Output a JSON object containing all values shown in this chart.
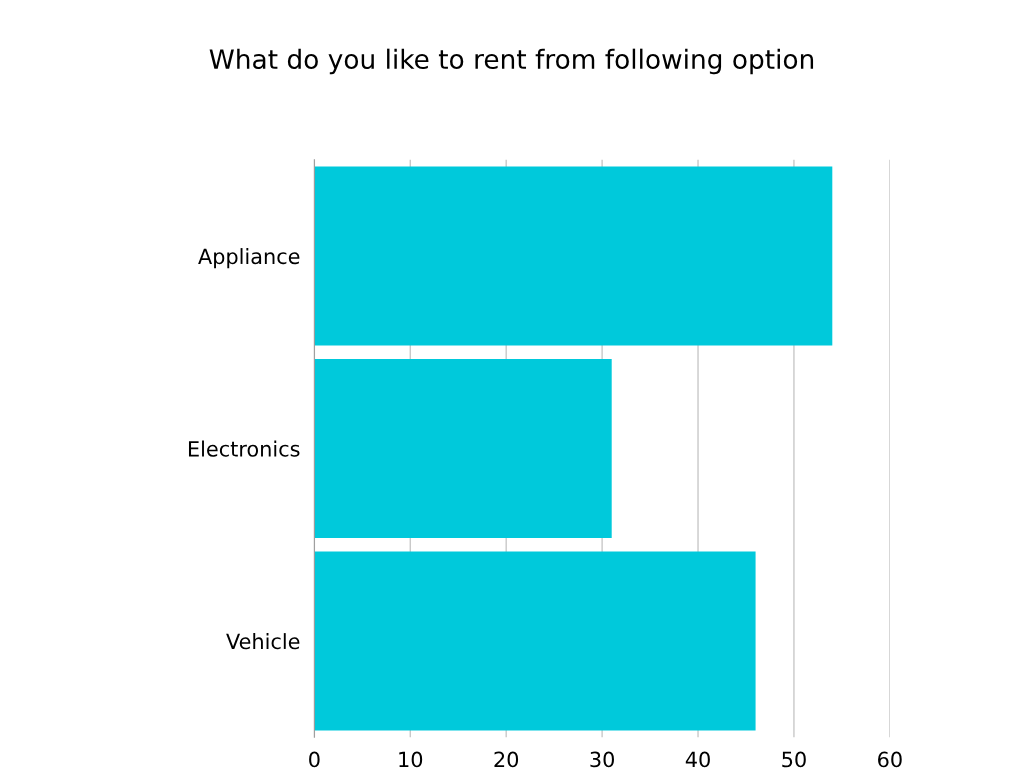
{
  "chart_data": {
    "type": "bar",
    "orientation": "horizontal",
    "title": "What do you like to rent from following option",
    "categories": [
      "Appliance",
      "Electronics",
      "Vehicle"
    ],
    "values": [
      54,
      31,
      46
    ],
    "color": "#00c9db",
    "xlim": [
      0,
      60
    ],
    "xticks": [
      0,
      10,
      20,
      30,
      40,
      50,
      60
    ],
    "grid": "x",
    "legend": false
  }
}
